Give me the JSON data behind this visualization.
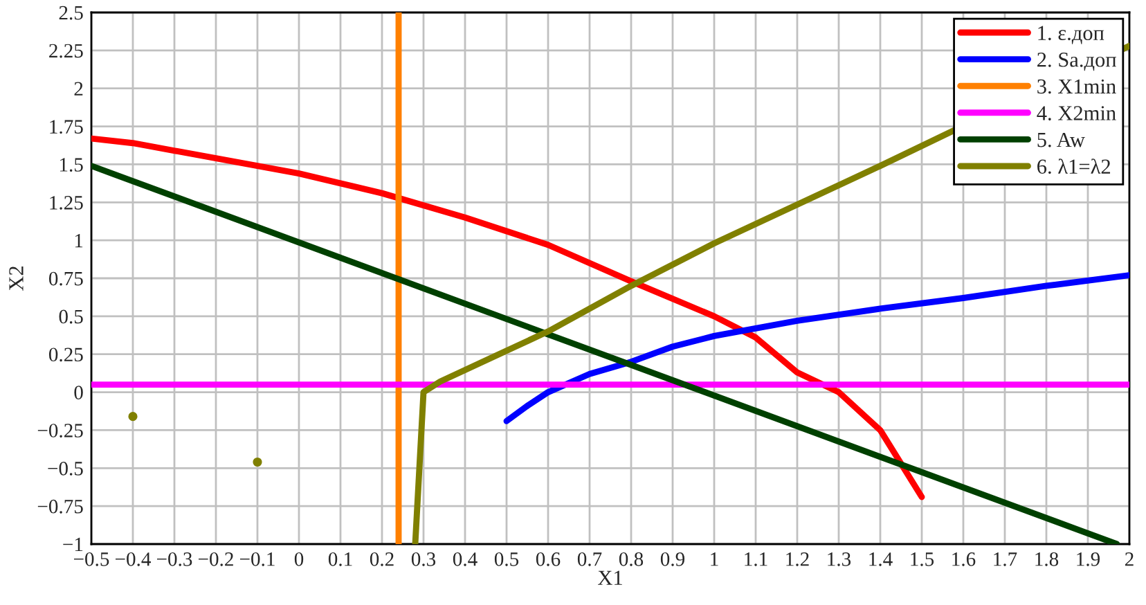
{
  "chart_data": {
    "type": "line",
    "xlabel": "X1",
    "ylabel": "X2",
    "xlim": [
      -0.5,
      2
    ],
    "ylim": [
      -1,
      2.5
    ],
    "xticks": [
      {
        "value": -0.5,
        "label": "−0.5"
      },
      {
        "value": -0.4,
        "label": "−0.4"
      },
      {
        "value": -0.3,
        "label": "−0.3"
      },
      {
        "value": -0.2,
        "label": "−0.2"
      },
      {
        "value": -0.1,
        "label": "−0.1"
      },
      0,
      0.1,
      0.2,
      0.3,
      0.4,
      0.5,
      0.6,
      0.7,
      0.8,
      0.9,
      1,
      1.1,
      1.2,
      1.3,
      1.4,
      1.5,
      1.6,
      1.7,
      1.8,
      1.9,
      2
    ],
    "yticks": [
      {
        "value": -1,
        "label": "−1"
      },
      {
        "value": -0.75,
        "label": "−0.75"
      },
      {
        "value": -0.5,
        "label": "−0.5"
      },
      {
        "value": -0.25,
        "label": "−0.25"
      },
      0,
      0.25,
      0.5,
      0.75,
      1,
      1.25,
      1.5,
      1.75,
      2,
      2.25,
      2.5
    ],
    "grid": true,
    "legend": "top right",
    "line_style": "solid",
    "series": [
      {
        "name": "1. ε.доп",
        "color": "#ff0000",
        "x": [
          -0.5,
          -0.4,
          -0.2,
          0,
          0.2,
          0.4,
          0.6,
          0.8,
          1.0,
          1.1,
          1.2,
          1.3,
          1.4,
          1.5
        ],
        "values": [
          1.67,
          1.64,
          1.54,
          1.44,
          1.31,
          1.15,
          0.97,
          0.73,
          0.5,
          0.36,
          0.13,
          0.0,
          -0.25,
          -0.69
        ]
      },
      {
        "name": "2. Sa.доп",
        "color": "#0000ff",
        "x": [
          0.5,
          0.55,
          0.6,
          0.7,
          0.8,
          0.9,
          1.0,
          1.2,
          1.4,
          1.6,
          1.8,
          2.0
        ],
        "values": [
          -0.19,
          -0.09,
          0.0,
          0.12,
          0.2,
          0.3,
          0.37,
          0.47,
          0.55,
          0.62,
          0.7,
          0.77
        ]
      },
      {
        "name": "3. X1min",
        "color": "#ff8000",
        "x": [
          0.24,
          0.24
        ],
        "values": [
          -1,
          2.5
        ]
      },
      {
        "name": "4. X2min",
        "color": "#ff00ff",
        "x": [
          -0.5,
          2
        ],
        "values": [
          0.05,
          0.05
        ]
      },
      {
        "name": "5. Aw",
        "color": "#004000",
        "x": [
          -0.5,
          1.97
        ],
        "values": [
          1.49,
          -1.0
        ]
      },
      {
        "name": "6. λ1=λ2",
        "color": "#808000",
        "x": [
          0.28,
          0.29,
          0.3,
          0.34,
          0.6,
          0.8,
          1.0,
          1.4,
          2.0
        ],
        "values": [
          -1.0,
          -0.5,
          0.0,
          0.07,
          0.4,
          0.7,
          0.98,
          1.49,
          2.28
        ]
      },
      {
        "type": "scatter",
        "color": "#808000",
        "x": [
          -0.4,
          -0.1
        ],
        "values": [
          -0.16,
          -0.46
        ]
      }
    ]
  }
}
